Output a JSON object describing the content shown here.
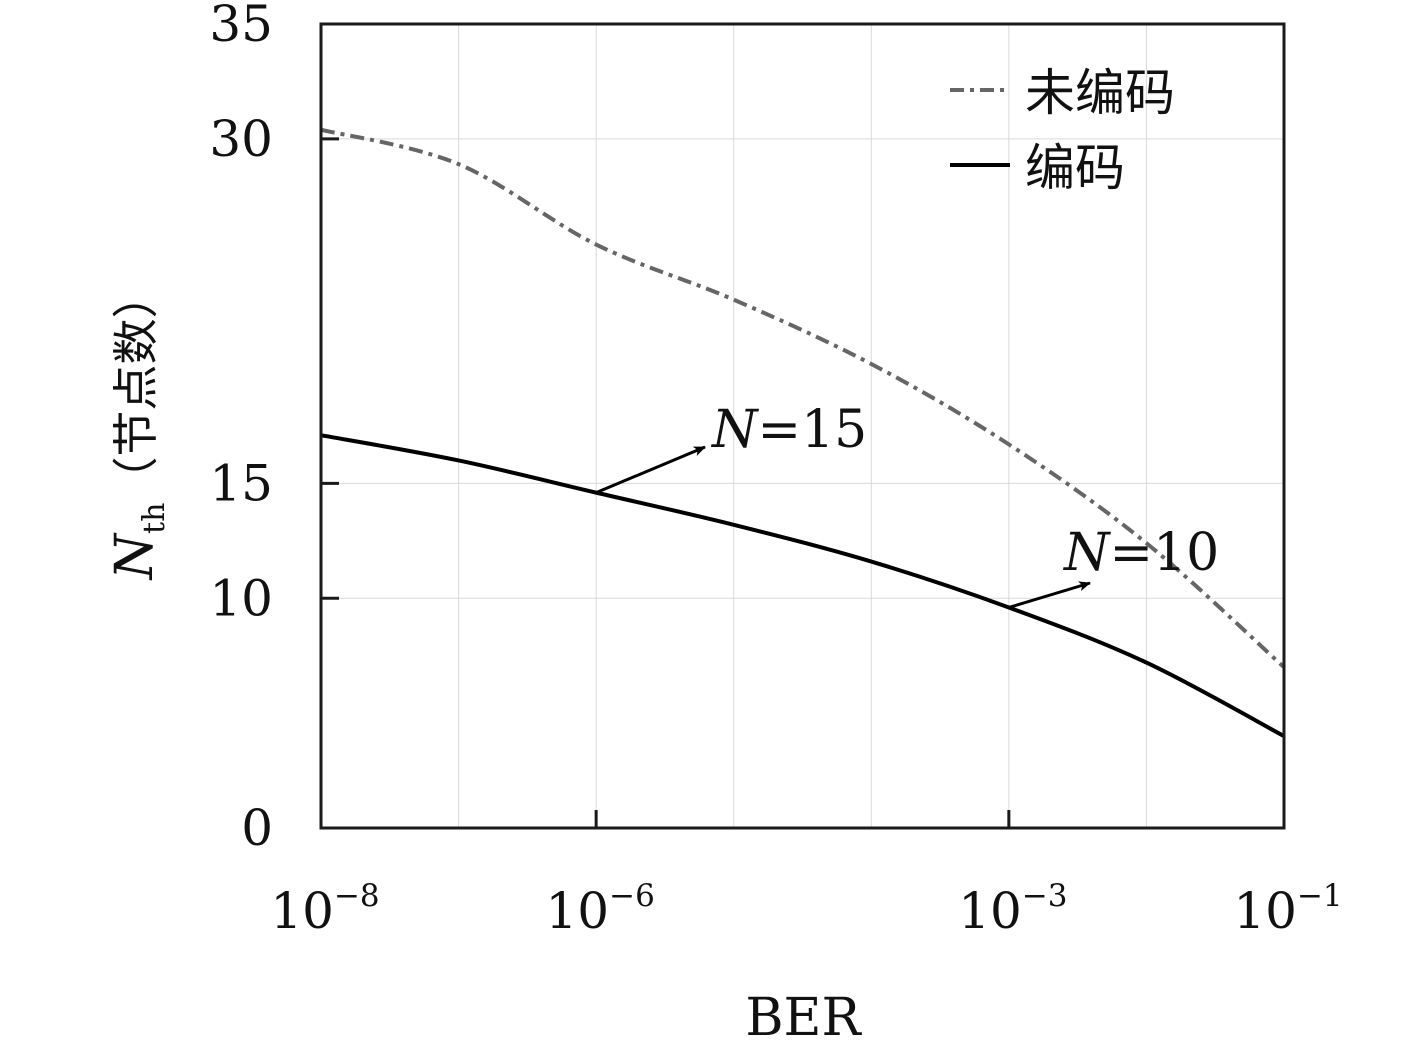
{
  "chart_data": {
    "type": "line",
    "xlabel": "BER",
    "ylabel": {
      "symbol": "N",
      "subscript": "th",
      "unit": "（节点数）"
    },
    "x_scale": "log",
    "xlim": [
      1e-08,
      0.1
    ],
    "ylim": [
      0,
      35
    ],
    "x_ticks": [
      {
        "value": 1e-08,
        "base": "10",
        "exp": "−8"
      },
      {
        "value": 1e-06,
        "base": "10",
        "exp": "−6"
      },
      {
        "value": 0.001,
        "base": "10",
        "exp": "−3"
      },
      {
        "value": 0.1,
        "base": "10",
        "exp": "−1"
      }
    ],
    "y_ticks": [
      {
        "value": 0,
        "label": "0"
      },
      {
        "value": 10,
        "label": "10"
      },
      {
        "value": 15,
        "label": "15"
      },
      {
        "value": 30,
        "label": "30"
      },
      {
        "value": 35,
        "label": "35"
      }
    ],
    "grid": true,
    "legend_position": "top-right",
    "series": [
      {
        "name": "未编码",
        "style": "dash-dot",
        "color": "#666666",
        "x": [
          1e-08,
          1e-07,
          1e-06,
          1e-05,
          0.0001,
          0.001,
          0.01,
          0.1
        ],
        "y": [
          30.4,
          28.9,
          25.4,
          23.0,
          20.2,
          16.7,
          12.4,
          7.0
        ]
      },
      {
        "name": "编码",
        "style": "solid",
        "color": "#000000",
        "x": [
          1e-08,
          1e-07,
          1e-06,
          1e-05,
          0.0001,
          0.001,
          0.01,
          0.1
        ],
        "y": [
          17.1,
          16.0,
          14.6,
          13.2,
          11.6,
          9.6,
          7.2,
          4.0
        ]
      }
    ],
    "annotations": [
      {
        "label": "N=15",
        "symbol": "N",
        "rest": "=15",
        "point": {
          "x": 1e-06,
          "y": 14.6
        }
      },
      {
        "label": "N=10",
        "symbol": "N",
        "rest": "=10",
        "point": {
          "x": 0.001,
          "y": 9.6
        }
      }
    ]
  }
}
